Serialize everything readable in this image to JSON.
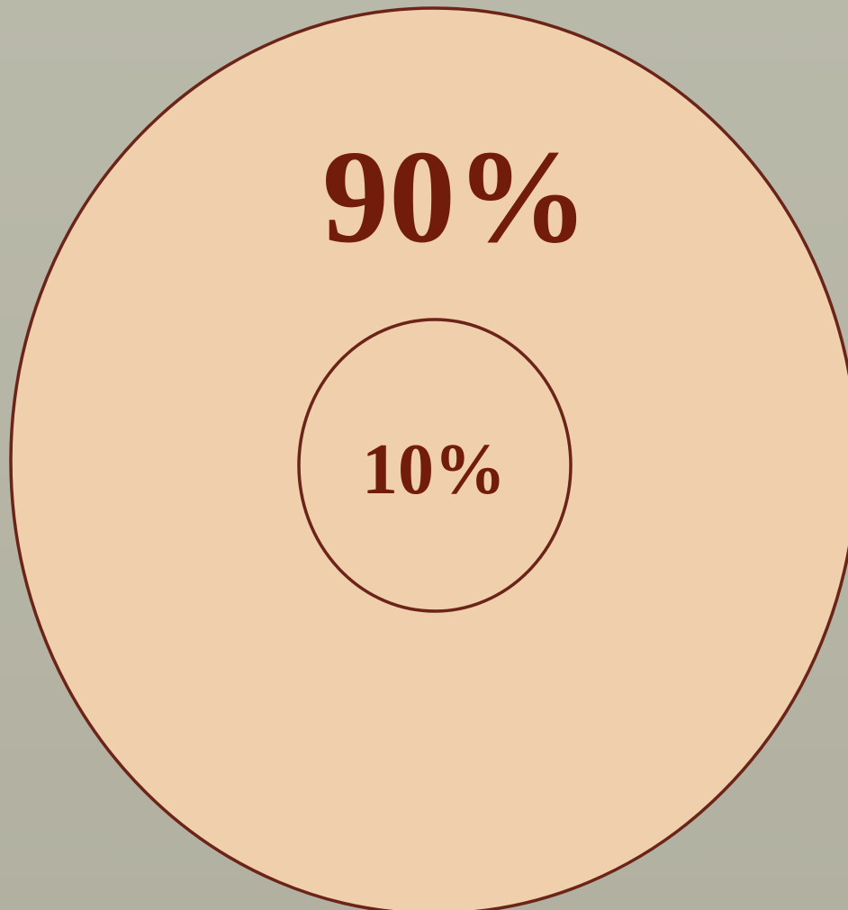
{
  "diagram": {
    "outer": {
      "label": "90%",
      "value": 90
    },
    "inner": {
      "label": "10%",
      "value": 10
    }
  },
  "colors": {
    "background": "#b5b5a6",
    "fill": "#f0cfad",
    "stroke": "#6b2417",
    "text": "#721c0c"
  }
}
